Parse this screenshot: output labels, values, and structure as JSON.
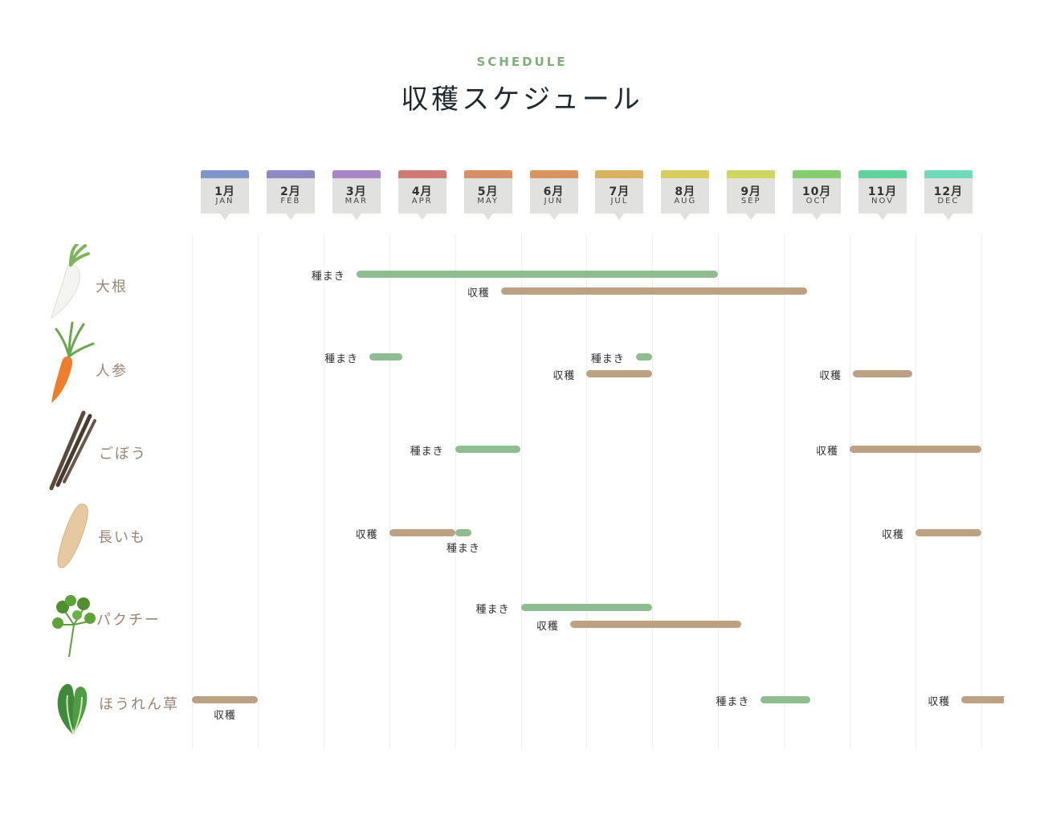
{
  "header": {
    "eyebrow": "SCHEDULE",
    "title": "収穫スケジュール"
  },
  "months": [
    {
      "ja": "1月",
      "en": "JAN",
      "color": "#7f95c9"
    },
    {
      "ja": "2月",
      "en": "FEB",
      "color": "#8c89c4"
    },
    {
      "ja": "3月",
      "en": "MAR",
      "color": "#a986c4"
    },
    {
      "ja": "4月",
      "en": "APR",
      "color": "#cf7a72"
    },
    {
      "ja": "5月",
      "en": "MAY",
      "color": "#d98f66"
    },
    {
      "ja": "6月",
      "en": "JUN",
      "color": "#d8965f"
    },
    {
      "ja": "7月",
      "en": "JUL",
      "color": "#d9b25f"
    },
    {
      "ja": "8月",
      "en": "AUG",
      "color": "#d6cf5e"
    },
    {
      "ja": "9月",
      "en": "SEP",
      "color": "#cfd660"
    },
    {
      "ja": "10月",
      "en": "OCT",
      "color": "#86cd72"
    },
    {
      "ja": "11月",
      "en": "NOV",
      "color": "#5fd49a"
    },
    {
      "ja": "12月",
      "en": "DEC",
      "color": "#6fdbb9"
    }
  ],
  "legend": {
    "sow": "種まき",
    "harvest": "収穫"
  },
  "colors": {
    "sow": "#8fbc91",
    "harvest": "#bda185"
  },
  "chart_data": {
    "type": "gantt",
    "categories": [
      "大根",
      "人参",
      "ごぼう",
      "長いも",
      "パクチー",
      "ほうれん草"
    ],
    "x_unit": "month (1 = start of January, 13 = end of December)",
    "xlim": [
      1,
      13
    ],
    "series": [
      {
        "name": "種まき",
        "color": "#8fbc91",
        "bars": [
          {
            "row": 0,
            "start": 3.5,
            "end": 9.0
          },
          {
            "row": 1,
            "start": 3.7,
            "end": 4.2
          },
          {
            "row": 1,
            "start": 7.75,
            "end": 8.0
          },
          {
            "row": 2,
            "start": 5.0,
            "end": 6.0
          },
          {
            "row": 3,
            "start": 5.0,
            "end": 5.25
          },
          {
            "row": 4,
            "start": 6.0,
            "end": 8.0
          },
          {
            "row": 5,
            "start": 9.65,
            "end": 10.4
          }
        ]
      },
      {
        "name": "収穫",
        "color": "#bda185",
        "bars": [
          {
            "row": 0,
            "start": 5.7,
            "end": 10.35
          },
          {
            "row": 1,
            "start": 7.0,
            "end": 8.0
          },
          {
            "row": 1,
            "start": 11.05,
            "end": 11.95
          },
          {
            "row": 2,
            "start": 11.0,
            "end": 13.0
          },
          {
            "row": 3,
            "start": 4.0,
            "end": 5.0
          },
          {
            "row": 3,
            "start": 12.0,
            "end": 13.0
          },
          {
            "row": 4,
            "start": 6.75,
            "end": 9.35
          },
          {
            "row": 5,
            "start": 1.0,
            "end": 2.0
          },
          {
            "row": 5,
            "start": 12.7,
            "end": 13.35
          }
        ]
      }
    ]
  }
}
